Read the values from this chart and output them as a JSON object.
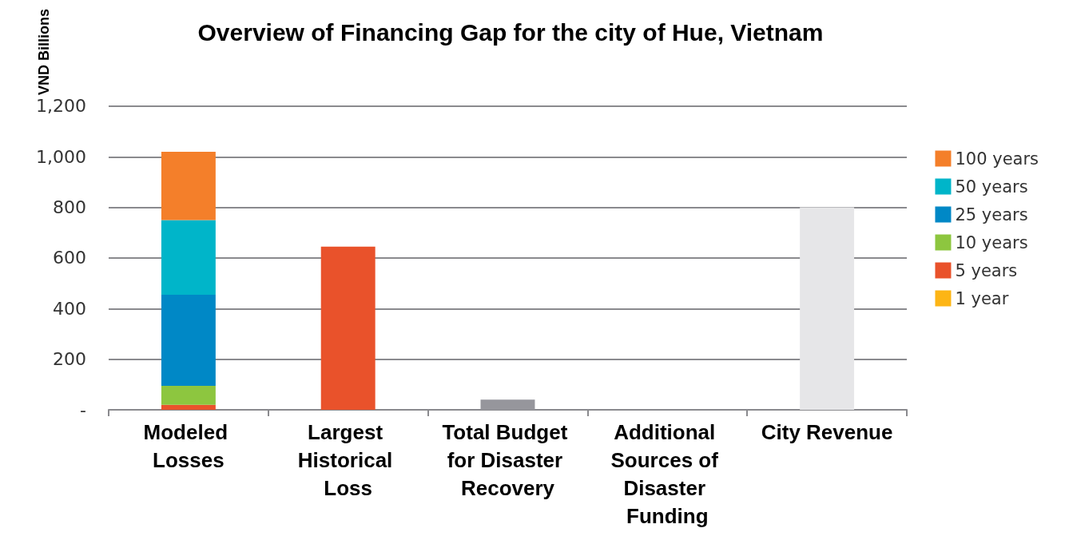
{
  "chart_data": {
    "type": "bar",
    "title": "Overview of Financing Gap for the city of Hue, Vietnam",
    "ylabel": "VND Billions",
    "categories": [
      "Modeled Losses",
      "Largest Historical Loss",
      "Total Budget for Disaster Recovery",
      "Additional Sources of Disaster Funding",
      "City Revenue"
    ],
    "stacked": true,
    "series": [
      {
        "name": "1 year",
        "color": "#fdb515",
        "values": [
          0,
          null,
          null,
          null,
          null
        ]
      },
      {
        "name": "5 years",
        "color": "#e9522b",
        "values": [
          20,
          null,
          null,
          null,
          null
        ]
      },
      {
        "name": "10 years",
        "color": "#8dc63f",
        "values": [
          75,
          null,
          null,
          null,
          null
        ]
      },
      {
        "name": "25 years",
        "color": "#0088c6",
        "values": [
          360,
          null,
          null,
          null,
          null
        ]
      },
      {
        "name": "50 years",
        "color": "#00b5c9",
        "values": [
          295,
          null,
          null,
          null,
          null
        ]
      },
      {
        "name": "100 years",
        "color": "#f47f2a",
        "values": [
          270,
          null,
          null,
          null,
          null
        ]
      },
      {
        "colors": [
          null,
          "#e9522b",
          "#96969c",
          "#96969c",
          "#e6e6e8"
        ],
        "values": [
          null,
          645,
          40,
          0,
          800
        ]
      }
    ],
    "ylim": [
      0,
      1200
    ],
    "yticks": [
      {
        "value": 0,
        "label": "-"
      },
      200,
      400,
      600,
      800,
      {
        "value": 1000,
        "label": "1,000"
      },
      {
        "value": 1200,
        "label": "1,200"
      }
    ],
    "grid": "y",
    "legend": "right"
  }
}
